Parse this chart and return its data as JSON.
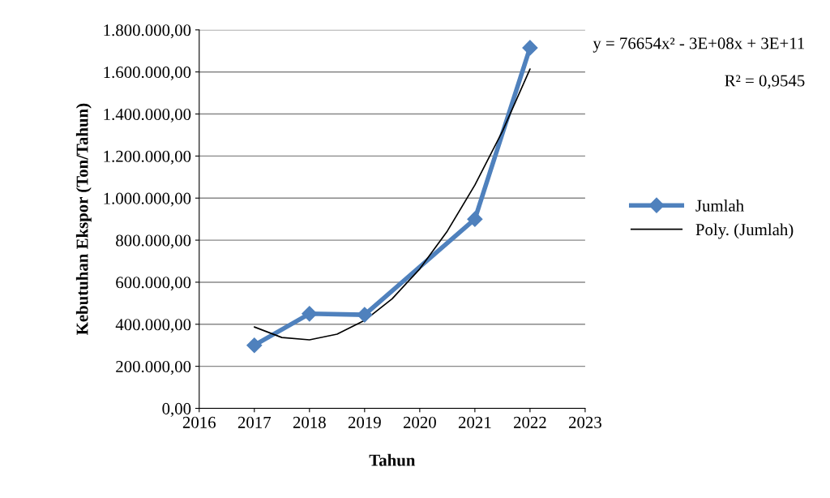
{
  "chart_data": {
    "type": "line",
    "xlabel": "Tahun",
    "ylabel": "Kebutuhan Ekspor (Ton/Tahun)",
    "xlim": [
      2016,
      2023
    ],
    "xticks": [
      2016,
      2017,
      2018,
      2019,
      2020,
      2021,
      2022,
      2023
    ],
    "ylim": [
      0,
      1800000
    ],
    "yticks": [
      {
        "value": 0,
        "label": "0,00"
      },
      {
        "value": 200000,
        "label": "200.000,00"
      },
      {
        "value": 400000,
        "label": "400.000,00"
      },
      {
        "value": 600000,
        "label": "600.000,00"
      },
      {
        "value": 800000,
        "label": "800.000,00"
      },
      {
        "value": 1000000,
        "label": "1.000.000,00"
      },
      {
        "value": 1200000,
        "label": "1.200.000,00"
      },
      {
        "value": 1400000,
        "label": "1.400.000,00"
      },
      {
        "value": 1600000,
        "label": "1.600.000,00"
      },
      {
        "value": 1800000,
        "label": "1.800.000,00"
      }
    ],
    "grid": "y",
    "legend": "right",
    "series": [
      {
        "name": "Jumlah",
        "color": "#4f81bd",
        "marker": "diamond",
        "x": [
          2017,
          2018,
          2019,
          2021,
          2022
        ],
        "values": [
          300000,
          450000,
          445000,
          900000,
          1715000
        ]
      },
      {
        "name": "Poly. (Jumlah)",
        "color": "#000000",
        "type": "line",
        "marker": "none",
        "x": [
          2017,
          2017.5,
          2018,
          2018.5,
          2019,
          2019.5,
          2020,
          2020.5,
          2021,
          2021.5,
          2022
        ],
        "values": [
          387000,
          337000,
          326000,
          353000,
          418000,
          521000,
          663000,
          843000,
          1062000,
          1318000,
          1614000
        ]
      }
    ],
    "annotations": [
      "y = 76654x² - 3E+08x + 3E+11",
      "R² = 0,9545"
    ]
  }
}
